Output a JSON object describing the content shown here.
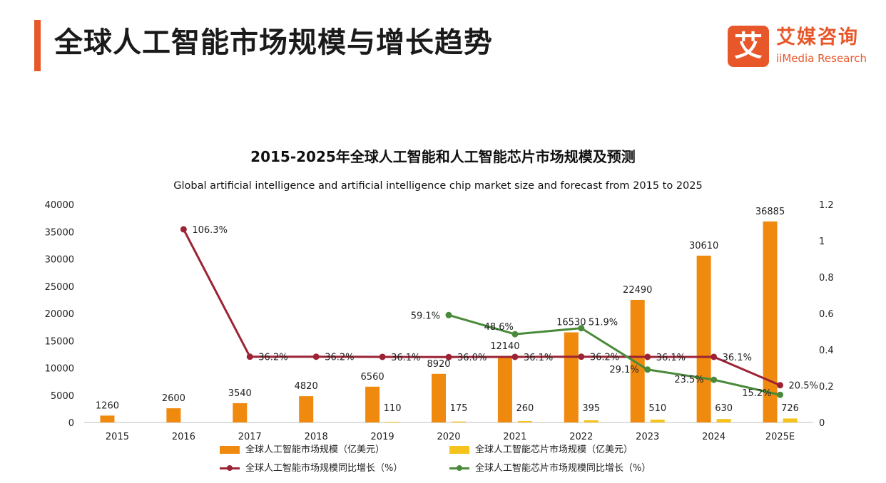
{
  "header": {
    "title": "全球人工智能市场规模与增长趋势",
    "brand_mark": "艾",
    "brand_cn": "艾媒咨询",
    "brand_en": "iiMedia Research"
  },
  "colors": {
    "accent": "#e8572a",
    "ai_market_bar": "#f08a0f",
    "ai_chip_bar": "#f6c21c",
    "ai_market_growth_line": "#9b2335",
    "ai_chip_growth_line": "#4a8a3a"
  },
  "chart_data": {
    "type": "bar",
    "title": "2015-2025年全球人工智能和人工智能芯片市场规模及预测",
    "subtitle": "Global artificial intelligence and artificial intelligence chip market size and forecast from 2015 to 2025",
    "categories": [
      "2015",
      "2016",
      "2017",
      "2018",
      "2019",
      "2020",
      "2021",
      "2022",
      "2023",
      "2024",
      "2025E"
    ],
    "ylim": [
      0,
      40000
    ],
    "y_ticks": [
      "0",
      "5000",
      "10000",
      "15000",
      "20000",
      "25000",
      "30000",
      "35000",
      "40000"
    ],
    "y2lim": [
      0,
      1.2
    ],
    "y2_ticks": [
      "0",
      "0.2",
      "0.4",
      "0.6",
      "0.8",
      "1",
      "1.2"
    ],
    "grid": false,
    "legend_position": "bottom",
    "series": [
      {
        "name": "全球人工智能市场规模（亿美元）",
        "kind": "bar",
        "axis": "left",
        "values": [
          1260,
          2600,
          3540,
          4820,
          6560,
          8920,
          12140,
          16530,
          22490,
          30610,
          36885
        ],
        "labels": [
          "1260",
          "2600",
          "3540",
          "4820",
          "6560",
          "8920",
          "12140",
          "16530",
          "22490",
          "30610",
          "36885"
        ]
      },
      {
        "name": "全球人工智能芯片市场规模（亿美元）",
        "kind": "bar",
        "axis": "left",
        "values": [
          null,
          null,
          null,
          null,
          110,
          175,
          260,
          395,
          510,
          630,
          726
        ],
        "labels": [
          "",
          "",
          "",
          "",
          "110",
          "175",
          "260",
          "395",
          "510",
          "630",
          "726"
        ]
      },
      {
        "name": "全球人工智能市场规模同比增长（%）",
        "kind": "line",
        "axis": "right",
        "values": [
          null,
          1.063,
          0.362,
          0.362,
          0.361,
          0.36,
          0.361,
          0.362,
          0.361,
          0.361,
          0.205
        ],
        "labels": [
          "",
          "106.3%",
          "36.2%",
          "36.2%",
          "36.1%",
          "36.0%",
          "36.1%",
          "36.2%",
          "36.1%",
          "36.1%",
          "20.5%"
        ]
      },
      {
        "name": "全球人工智能芯片市场规模同比增长（%）",
        "kind": "line",
        "axis": "right",
        "values": [
          null,
          null,
          null,
          null,
          null,
          0.591,
          0.486,
          0.519,
          0.291,
          0.235,
          0.152
        ],
        "labels": [
          "",
          "",
          "",
          "",
          "",
          "59.1%",
          "48.6%",
          "51.9%",
          "29.1%",
          "23.5%",
          "15.2%"
        ]
      }
    ]
  }
}
